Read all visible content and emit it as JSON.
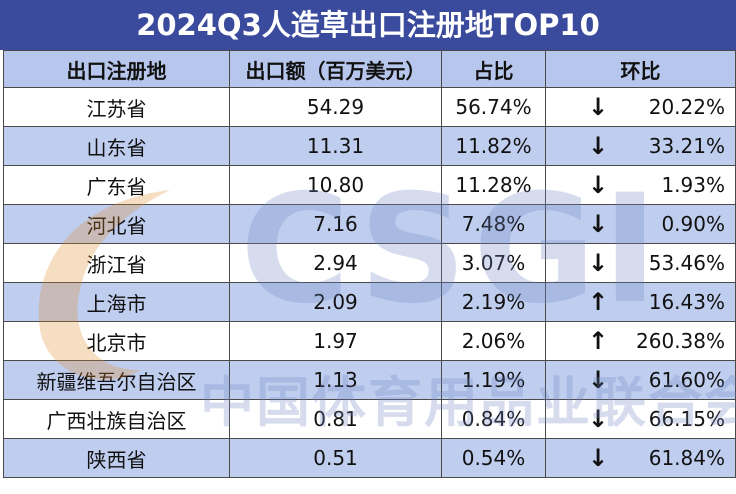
{
  "title": "2024Q3人造草出口注册地TOP10",
  "headers": {
    "region": "出口注册地",
    "amount": "出口额（百万美元）",
    "share": "占比",
    "mom": "环比"
  },
  "watermark": {
    "logo": "CSGI",
    "text": "中国体育用品业联合会"
  },
  "colors": {
    "title_bg": "#3a4a9c",
    "header_bg": "#b6c6ec",
    "band_bg": "#bfcdef"
  },
  "chart_data": {
    "type": "table",
    "title": "2024Q3人造草出口注册地TOP10",
    "columns": [
      "出口注册地",
      "出口额（百万美元）",
      "占比",
      "环比"
    ],
    "rows": [
      {
        "region": "江苏省",
        "amount": "54.29",
        "share": "56.74%",
        "direction": "down",
        "arrow": "↓",
        "mom": "20.22%"
      },
      {
        "region": "山东省",
        "amount": "11.31",
        "share": "11.82%",
        "direction": "down",
        "arrow": "↓",
        "mom": "33.21%"
      },
      {
        "region": "广东省",
        "amount": "10.80",
        "share": "11.28%",
        "direction": "down",
        "arrow": "↓",
        "mom": "1.93%"
      },
      {
        "region": "河北省",
        "amount": "7.16",
        "share": "7.48%",
        "direction": "down",
        "arrow": "↓",
        "mom": "0.90%"
      },
      {
        "region": "浙江省",
        "amount": "2.94",
        "share": "3.07%",
        "direction": "down",
        "arrow": "↓",
        "mom": "53.46%"
      },
      {
        "region": "上海市",
        "amount": "2.09",
        "share": "2.19%",
        "direction": "up",
        "arrow": "↑",
        "mom": "16.43%"
      },
      {
        "region": "北京市",
        "amount": "1.97",
        "share": "2.06%",
        "direction": "up",
        "arrow": "↑",
        "mom": "260.38%"
      },
      {
        "region": "新疆维吾尔自治区",
        "amount": "1.13",
        "share": "1.19%",
        "direction": "down",
        "arrow": "↓",
        "mom": "61.60%"
      },
      {
        "region": "广西壮族自治区",
        "amount": "0.81",
        "share": "0.84%",
        "direction": "down",
        "arrow": "↓",
        "mom": "66.15%"
      },
      {
        "region": "陕西省",
        "amount": "0.51",
        "share": "0.54%",
        "direction": "down",
        "arrow": "↓",
        "mom": "61.84%"
      }
    ]
  }
}
